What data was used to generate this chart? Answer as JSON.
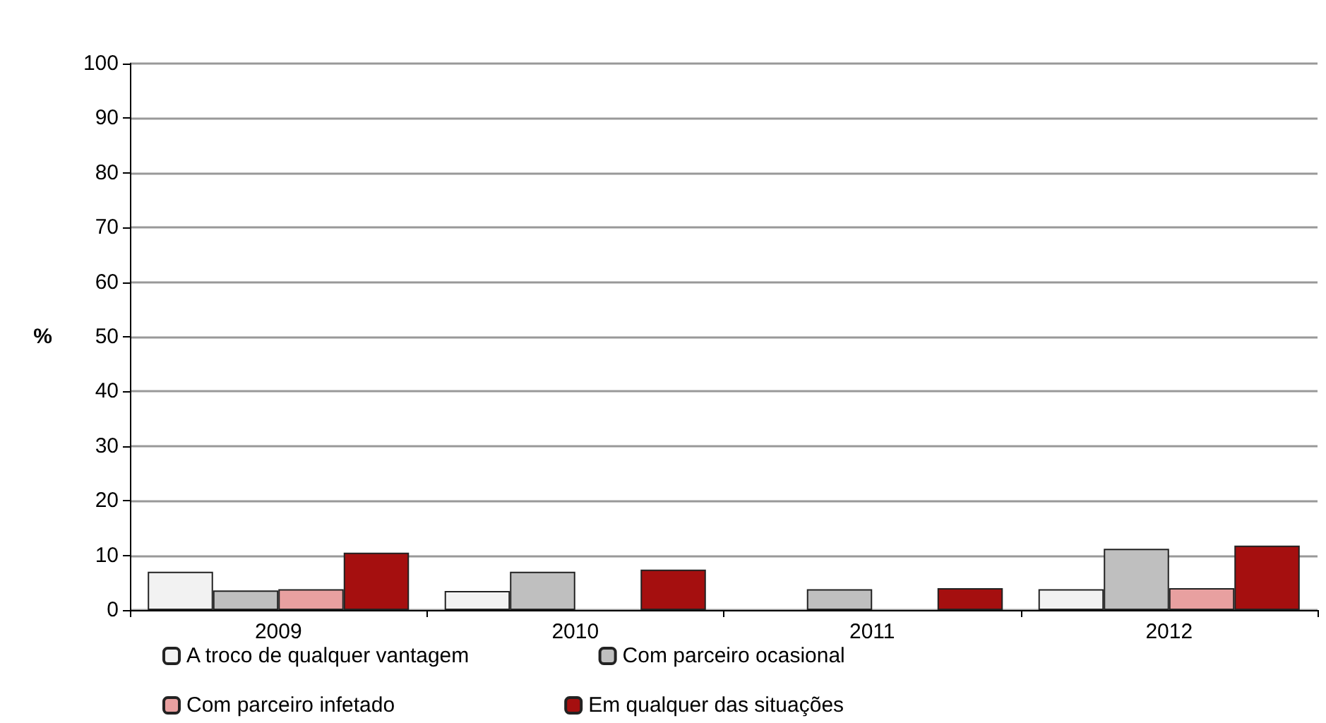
{
  "chart_data": {
    "type": "bar",
    "ylabel": "%",
    "categories": [
      "2009",
      "2010",
      "2011",
      "2012"
    ],
    "series": [
      {
        "name": "A troco de qualquer vantagem",
        "color": "#f2f2f2",
        "values": [
          7,
          3.5,
          null,
          3.8
        ]
      },
      {
        "name": "Com parceiro ocasional",
        "color": "#bfbfbf",
        "values": [
          3.6,
          7,
          3.8,
          11.2
        ]
      },
      {
        "name": "Com parceiro infetado",
        "color": "#e8a0a0",
        "values": [
          3.8,
          null,
          null,
          4
        ]
      },
      {
        "name": "Em qualquer das situações",
        "color": "#a50f0f",
        "values": [
          10.5,
          7.4,
          4,
          11.8
        ]
      }
    ],
    "ylim": [
      0,
      100
    ],
    "yticks": [
      0,
      10,
      20,
      30,
      40,
      50,
      60,
      70,
      80,
      90,
      100
    ],
    "grid": "y",
    "legend": "bottom"
  }
}
